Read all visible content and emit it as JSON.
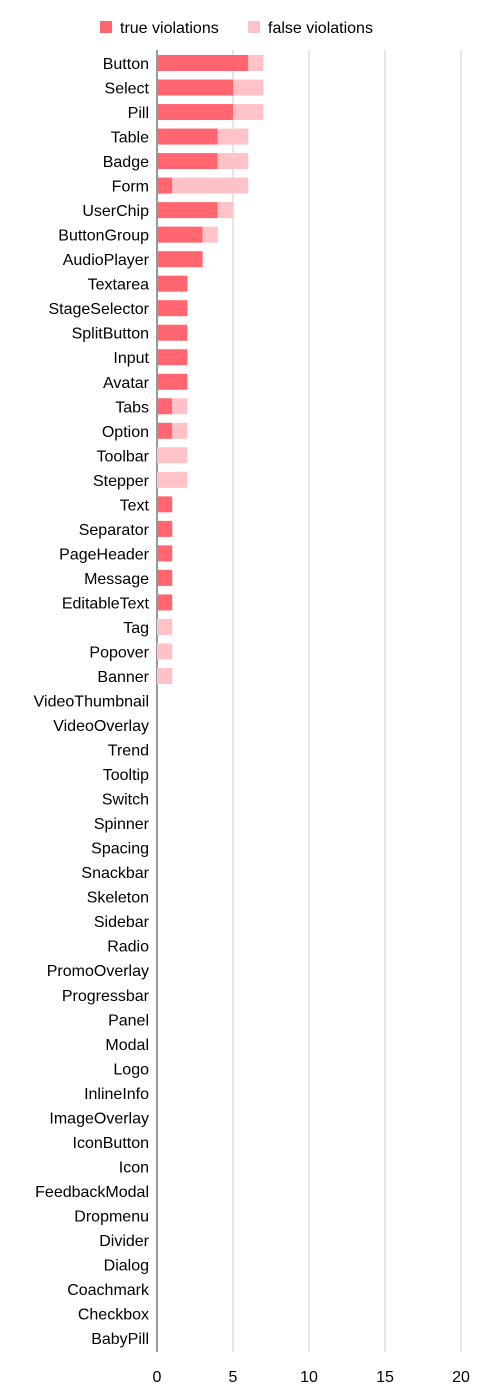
{
  "colors": {
    "true_violations": "#ff6670",
    "false_violations": "#ffc2c6",
    "grid": "#cccccc",
    "axis": "#333333"
  },
  "chart_data": {
    "type": "bar",
    "orientation": "horizontal",
    "stacked": true,
    "title": "",
    "xlabel": "",
    "ylabel": "",
    "xlim": [
      0,
      20
    ],
    "x_ticks": [
      0,
      5,
      10,
      15,
      20
    ],
    "grid": true,
    "legend_position": "top",
    "categories": [
      "Button",
      "Select",
      "Pill",
      "Table",
      "Badge",
      "Form",
      "UserChip",
      "ButtonGroup",
      "AudioPlayer",
      "Textarea",
      "StageSelector",
      "SplitButton",
      "Input",
      "Avatar",
      "Tabs",
      "Option",
      "Toolbar",
      "Stepper",
      "Text",
      "Separator",
      "PageHeader",
      "Message",
      "EditableText",
      "Tag",
      "Popover",
      "Banner",
      "VideoThumbnail",
      "VideoOverlay",
      "Trend",
      "Tooltip",
      "Switch",
      "Spinner",
      "Spacing",
      "Snackbar",
      "Skeleton",
      "Sidebar",
      "Radio",
      "PromoOverlay",
      "Progressbar",
      "Panel",
      "Modal",
      "Logo",
      "InlineInfo",
      "ImageOverlay",
      "IconButton",
      "Icon",
      "FeedbackModal",
      "Dropmenu",
      "Divider",
      "Dialog",
      "Coachmark",
      "Checkbox",
      "BabyPill"
    ],
    "series": [
      {
        "name": "true violations",
        "values": [
          6,
          5,
          5,
          4,
          4,
          1,
          4,
          3,
          3,
          2,
          2,
          2,
          2,
          2,
          1,
          1,
          0,
          0,
          1,
          1,
          1,
          1,
          1,
          0,
          0,
          0,
          0,
          0,
          0,
          0,
          0,
          0,
          0,
          0,
          0,
          0,
          0,
          0,
          0,
          0,
          0,
          0,
          0,
          0,
          0,
          0,
          0,
          0,
          0,
          0,
          0,
          0,
          0
        ]
      },
      {
        "name": "false violations",
        "values": [
          1,
          2,
          2,
          2,
          2,
          5,
          1,
          1,
          0,
          0,
          0,
          0,
          0,
          0,
          1,
          1,
          2,
          2,
          0,
          0,
          0,
          0,
          0,
          1,
          1,
          1,
          0,
          0,
          0,
          0,
          0,
          0,
          0,
          0,
          0,
          0,
          0,
          0,
          0,
          0,
          0,
          0,
          0,
          0,
          0,
          0,
          0,
          0,
          0,
          0,
          0,
          0,
          0
        ]
      }
    ]
  }
}
